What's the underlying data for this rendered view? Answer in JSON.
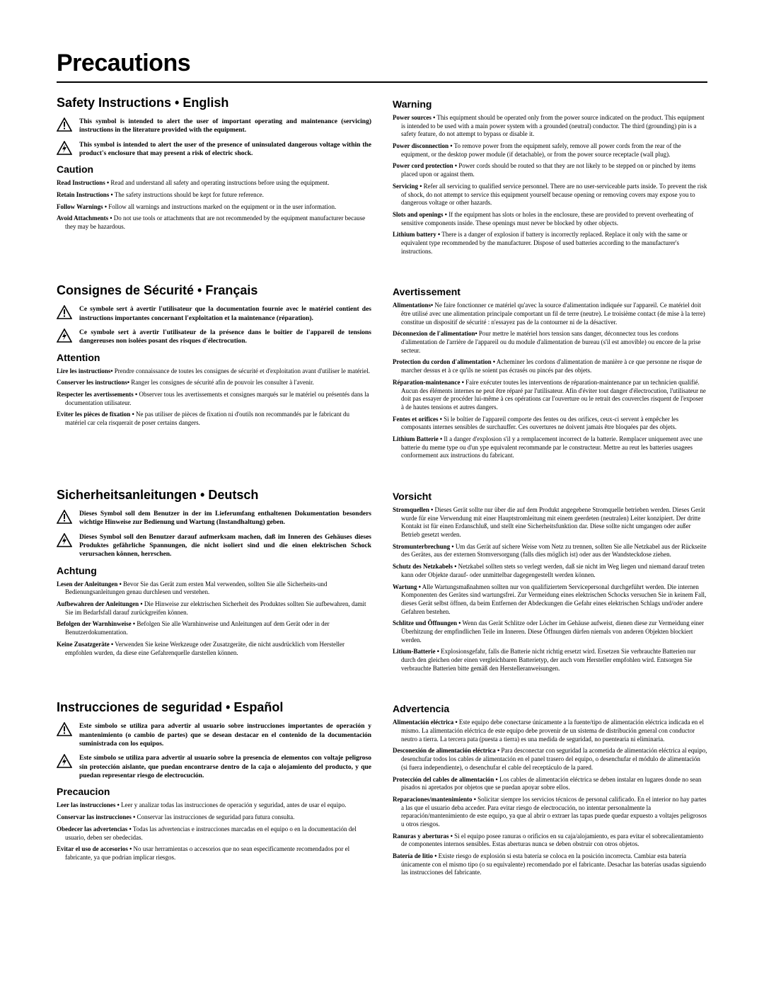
{
  "page_title": "Precautions",
  "icons": {
    "triangle_bang": "warning-triangle-exclamation",
    "triangle_bolt": "warning-triangle-lightning"
  },
  "languages": [
    {
      "title": "Safety Instructions • English",
      "symbol_bang": "This symbol is intended to alert the user of important operating and maintenance (servicing) instructions in the literature provided with the equipment.",
      "symbol_bolt": "This symbol is intended to alert the user of the presence of uninsulated dangerous voltage within the product's enclosure that may present a risk of electric shock.",
      "caution_title": "Caution",
      "caution_items": [
        {
          "lead": "Read Instructions •",
          "body": " Read and understand all safety and operating instructions before using the equipment."
        },
        {
          "lead": "Retain Instructions •",
          "body": " The safety instructions should be kept for future reference."
        },
        {
          "lead": "Follow Warnings •",
          "body": " Follow all warnings and instructions marked on the equipment or in the user information."
        },
        {
          "lead": "Avoid Attachments •",
          "body": " Do not use tools or attachments that are not recommended by the equipment manufacturer because they may be hazardous."
        }
      ],
      "warning_title": "Warning",
      "warning_items": [
        {
          "lead": "Power sources •",
          "body": " This equipment should be operated only from the power source indicated on the product. This equipment is intended to be used with a main power system with a grounded (neutral) conductor. The third (grounding) pin is a safety feature, do not attempt to bypass or disable it."
        },
        {
          "lead": "Power disconnection •",
          "body": " To remove power from the equipment safely, remove all power cords from the rear of the equipment, or the desktop power module (if detachable), or from the power source receptacle (wall plug)."
        },
        {
          "lead": "Power cord protection •",
          "body": " Power cords should be routed so that they are not likely to be stepped on or pinched by items placed upon or against them."
        },
        {
          "lead": "Servicing •",
          "body": " Refer all servicing to qualified service personnel. There are no user-serviceable parts inside. To prevent the risk of shock, do not attempt to service this equipment yourself because opening or removing covers may expose you to dangerous voltage or other hazards."
        },
        {
          "lead": "Slots and openings •",
          "body": " If the equipment has slots or holes in the enclosure, these are provided to prevent overheating of sensitive components inside. These openings must never be blocked by other objects."
        },
        {
          "lead": "Lithium battery •",
          "body": " There is a danger of explosion if battery is incorrectly replaced. Replace it only with the same or equivalent type recommended by the manufacturer. Dispose of used batteries according to the manufacturer's instructions."
        }
      ]
    },
    {
      "title": "Consignes de Sécurité • Français",
      "symbol_bang": "Ce symbole sert à avertir l'utilisateur que la documentation fournie avec le matériel contient des instructions importantes concernant l'exploitation et la maintenance (réparation).",
      "symbol_bolt": "Ce symbole sert à avertir l'utilisateur de la présence dans le boîtier de l'appareil de tensions dangereuses non isolées posant des risques d'électrocution.",
      "caution_title": "Attention",
      "caution_items": [
        {
          "lead": "Lire les instructions•",
          "body": " Prendre connaissance de toutes les consignes de sécurité et d'exploitation avant d'utiliser le matériel."
        },
        {
          "lead": "Conserver les instructions•",
          "body": " Ranger les consignes de sécurité afin de pouvoir les consulter à l'avenir."
        },
        {
          "lead": "Respecter les avertissements •",
          "body": " Observer tous les avertissements et consignes marqués sur le matériel ou présentés dans la documentation utilisateur."
        },
        {
          "lead": "Eviter les pièces de fixation •",
          "body": " Ne pas utiliser de pièces de fixation ni d'outils non recommandés par le fabricant du matériel car cela risquerait de poser certains dangers."
        }
      ],
      "warning_title": "Avertissement",
      "warning_items": [
        {
          "lead": "Alimentations•",
          "body": " Ne faire fonctionner ce matériel qu'avec la source d'alimentation indiquée sur l'appareil. Ce matériel doit être utilisé avec une alimentation principale comportant un fil de terre (neutre). Le troisième contact (de mise à la terre) constitue un dispositif de sécurité : n'essayez pas de la contourner ni de la désactiver."
        },
        {
          "lead": "Déconnexion de l'alimentation•",
          "body": " Pour mettre le matériel hors tension sans danger, déconnectez tous les cordons d'alimentation de l'arrière de l'appareil ou du module d'alimentation de bureau (s'il est amovible) ou encore de la prise secteur."
        },
        {
          "lead": "Protection du cordon d'alimentation •",
          "body": " Acheminer les cordons d'alimentation de manière à ce que personne ne risque de marcher dessus et à ce qu'ils ne soient pas écrasés ou pincés par des objets."
        },
        {
          "lead": "Réparation-maintenance •",
          "body": " Faire exécuter toutes les interventions de réparation-maintenance par un technicien qualifié. Aucun des éléments internes ne peut être réparé par l'utilisateur. Afin d'éviter tout danger d'électrocution, l'utilisateur ne doit pas essayer de procéder lui-même à ces opérations car l'ouverture ou le retrait des couvercles risquent de l'exposer à de hautes tensions et autres dangers."
        },
        {
          "lead": "Fentes et orifices •",
          "body": " Si le boîtier de l'appareil comporte des fentes ou des orifices, ceux-ci servent à empêcher les composants internes sensibles de surchauffer. Ces ouvertures ne doivent jamais être bloquées par des objets."
        },
        {
          "lead": "Lithium Batterie •",
          "body": " Il a danger d'explosion s'il y a remplacement incorrect de la batterie. Remplacer uniquement avec une batterie du meme type ou d'un ype equivalent recommande par le constructeur. Mettre au reut les batteries usagees conformement aux instructions du fabricant."
        }
      ]
    },
    {
      "title": "Sicherheitsanleitungen • Deutsch",
      "symbol_bang": "Dieses Symbol soll dem Benutzer in der im Lieferumfang enthaltenen Dokumentation besonders wichtige Hinweise zur Bedienung und Wartung (Instandhaltung) geben.",
      "symbol_bolt": "Dieses Symbol soll den Benutzer darauf aufmerksam machen, daß im Inneren des Gehäuses dieses Produktes gefährliche Spannungen, die nicht isoliert sind und die einen elektrischen Schock verursachen können, herrschen.",
      "caution_title": "Achtung",
      "caution_items": [
        {
          "lead": "Lesen der Anleitungen •",
          "body": " Bevor Sie das Gerät zum ersten Mal verwenden, sollten Sie alle Sicherheits-und Bedienungsanleitungen genau durchlesen und verstehen."
        },
        {
          "lead": "Aufbewahren der Anleitungen •",
          "body": " Die Hinweise zur elektrischen Sicherheit des Produktes sollten Sie aufbewahren, damit Sie im Bedarfsfall darauf zurückgreifen können."
        },
        {
          "lead": "Befolgen der Warnhinweise •",
          "body": " Befolgen Sie alle Warnhinweise und Anleitungen auf dem Gerät oder in der Benutzerdokumentation."
        },
        {
          "lead": "Keine Zusatzgeräte •",
          "body": " Verwenden Sie keine Werkzeuge oder Zusatzgeräte, die nicht ausdrücklich vom Hersteller empfohlen wurden, da diese eine Gefahrenquelle darstellen können."
        }
      ],
      "warning_title": "Vorsicht",
      "warning_items": [
        {
          "lead": "Stromquellen •",
          "body": " Dieses Gerät sollte nur über die auf dem Produkt angegebene Stromquelle betrieben werden. Dieses Gerät wurde für eine Verwendung mit einer Hauptstromleitung mit einem geerdeten (neutralen) Leiter konzipiert. Der dritte Kontakt ist für einen Erdanschluß, und stellt eine Sicherheitsfunktion dar. Diese sollte nicht umgangen oder außer Betrieb gesetzt werden."
        },
        {
          "lead": "Stromunterbrechung •",
          "body": " Um das Gerät auf sichere Weise vom Netz zu trennen, sollten Sie alle Netzkabel aus der Rückseite des Gerätes, aus der externen Stomversorgung (falls dies möglich ist) oder aus der Wandsteckdose ziehen."
        },
        {
          "lead": "Schutz des Netzkabels •",
          "body": " Netzkabel sollten stets so verlegt werden, daß sie nicht im Weg liegen und niemand darauf treten kann oder Objekte darauf- oder unmittelbar dagegengestellt werden können."
        },
        {
          "lead": "Wartung •",
          "body": " Alle Wartungsmaßnahmen sollten nur von qualifiziertem Servicepersonal durchgeführt werden. Die internen Komponenten des Gerätes sind wartungsfrei. Zur Vermeidung eines elektrischen Schocks versuchen Sie in keinem Fall, dieses Gerät selbst öffnen, da beim Entfernen der Abdeckungen die Gefahr eines elektrischen Schlags und/oder andere Gefahren bestehen."
        },
        {
          "lead": "Schlitze und Öffnungen •",
          "body": " Wenn das Gerät Schlitze oder Löcher im Gehäuse aufweist, dienen diese zur Vermeidung einer Überhitzung der empfindlichen Teile im Inneren. Diese Öffnungen dürfen niemals von anderen Objekten blockiert werden."
        },
        {
          "lead": "Litium-Batterie •",
          "body": " Explosionsgefahr, falls die Batterie nicht richtig ersetzt wird. Ersetzen Sie verbrauchte Batterien nur durch den gleichen oder einen vergleichbaren Batterietyp, der auch vom Hersteller empfohlen wird. Entsorgen Sie verbrauchte Batterien bitte gemäß den Herstelleranweisungen."
        }
      ]
    },
    {
      "title": "Instrucciones de seguridad • Español",
      "symbol_bang": "Este símbolo se utiliza para advertir al usuario sobre instrucciones importantes de operación y mantenimiento (o cambio de partes) que se desean destacar en el contenido de la documentación suministrada con los equipos.",
      "symbol_bolt": "Este símbolo se utiliza para advertir al usuario sobre la presencia de elementos con voltaje peligroso sin protección aislante, que puedan encontrarse dentro de la caja o alojamiento del producto, y que puedan representar riesgo de electrocución.",
      "caution_title": "Precaucion",
      "caution_items": [
        {
          "lead": "Leer las instrucciones •",
          "body": " Leer y analizar todas las instrucciones de operación y seguridad, antes de usar el equipo."
        },
        {
          "lead": "Conservar las instrucciones •",
          "body": " Conservar las instrucciones de seguridad para futura consulta."
        },
        {
          "lead": "Obedecer las advertencias •",
          "body": " Todas las advertencias e instrucciones marcadas en el equipo o en la documentación del usuario, deben ser obedecidas."
        },
        {
          "lead": "Evitar el uso de accesorios •",
          "body": " No usar herramientas o accesorios que no sean especificamente recomendados por el fabricante, ya que podrian implicar riesgos."
        }
      ],
      "warning_title": "Advertencia",
      "warning_items": [
        {
          "lead": "Alimentación eléctrica •",
          "body": " Este equipo debe conectarse únicamente a la fuente/tipo de alimentación eléctrica indicada en el mismo. La alimentación eléctrica de este equipo debe provenir de un sistema de distribución general con conductor neutro a tierra. La tercera pata (puesta a tierra) es una medida de seguridad, no puentearia ni eliminaria."
        },
        {
          "lead": "Desconexión de alimentación eléctrica •",
          "body": " Para desconectar con seguridad la acometida de alimentación eléctrica al equipo, desenchufar todos los cables de alimentación en el panel trasero del equipo, o desenchufar el módulo de alimentación (si fuera independiente), o desenchufar el cable del receptáculo de la pared."
        },
        {
          "lead": "Protección del cables de alimentación •",
          "body": " Los cables de alimentación eléctrica se deben instalar en lugares donde no sean pisados ni apretados por objetos que se puedan apoyar sobre ellos."
        },
        {
          "lead": "Reparaciones/mantenimiento •",
          "body": " Solicitar siempre los servicios técnicos de personal calificado. En el interior no hay partes a las que el usuario deba acceder. Para evitar riesgo de electrocución, no intentar personalmente la reparación/mantenimiento de este equipo, ya que al abrir o extraer las tapas puede quedar expuesto a voltajes peligrosos u otros riesgos."
        },
        {
          "lead": "Ranuras y aberturas •",
          "body": " Si el equipo posee ranuras o orificios en su caja/alojamiento, es para evitar el sobrecalientamiento de componentes internos sensibles. Estas aberturas nunca se deben obstruir con otros objetos."
        },
        {
          "lead": "Batería de litio •",
          "body": " Existe riesgo de explosión si esta batería se coloca en la posición incorrecta. Cambiar esta batería únicamente con el mismo tipo (o su equivalente) recomendado por el fabricante. Desachar las baterías usadas siguiendo las instrucciones del fabricante."
        }
      ]
    }
  ]
}
